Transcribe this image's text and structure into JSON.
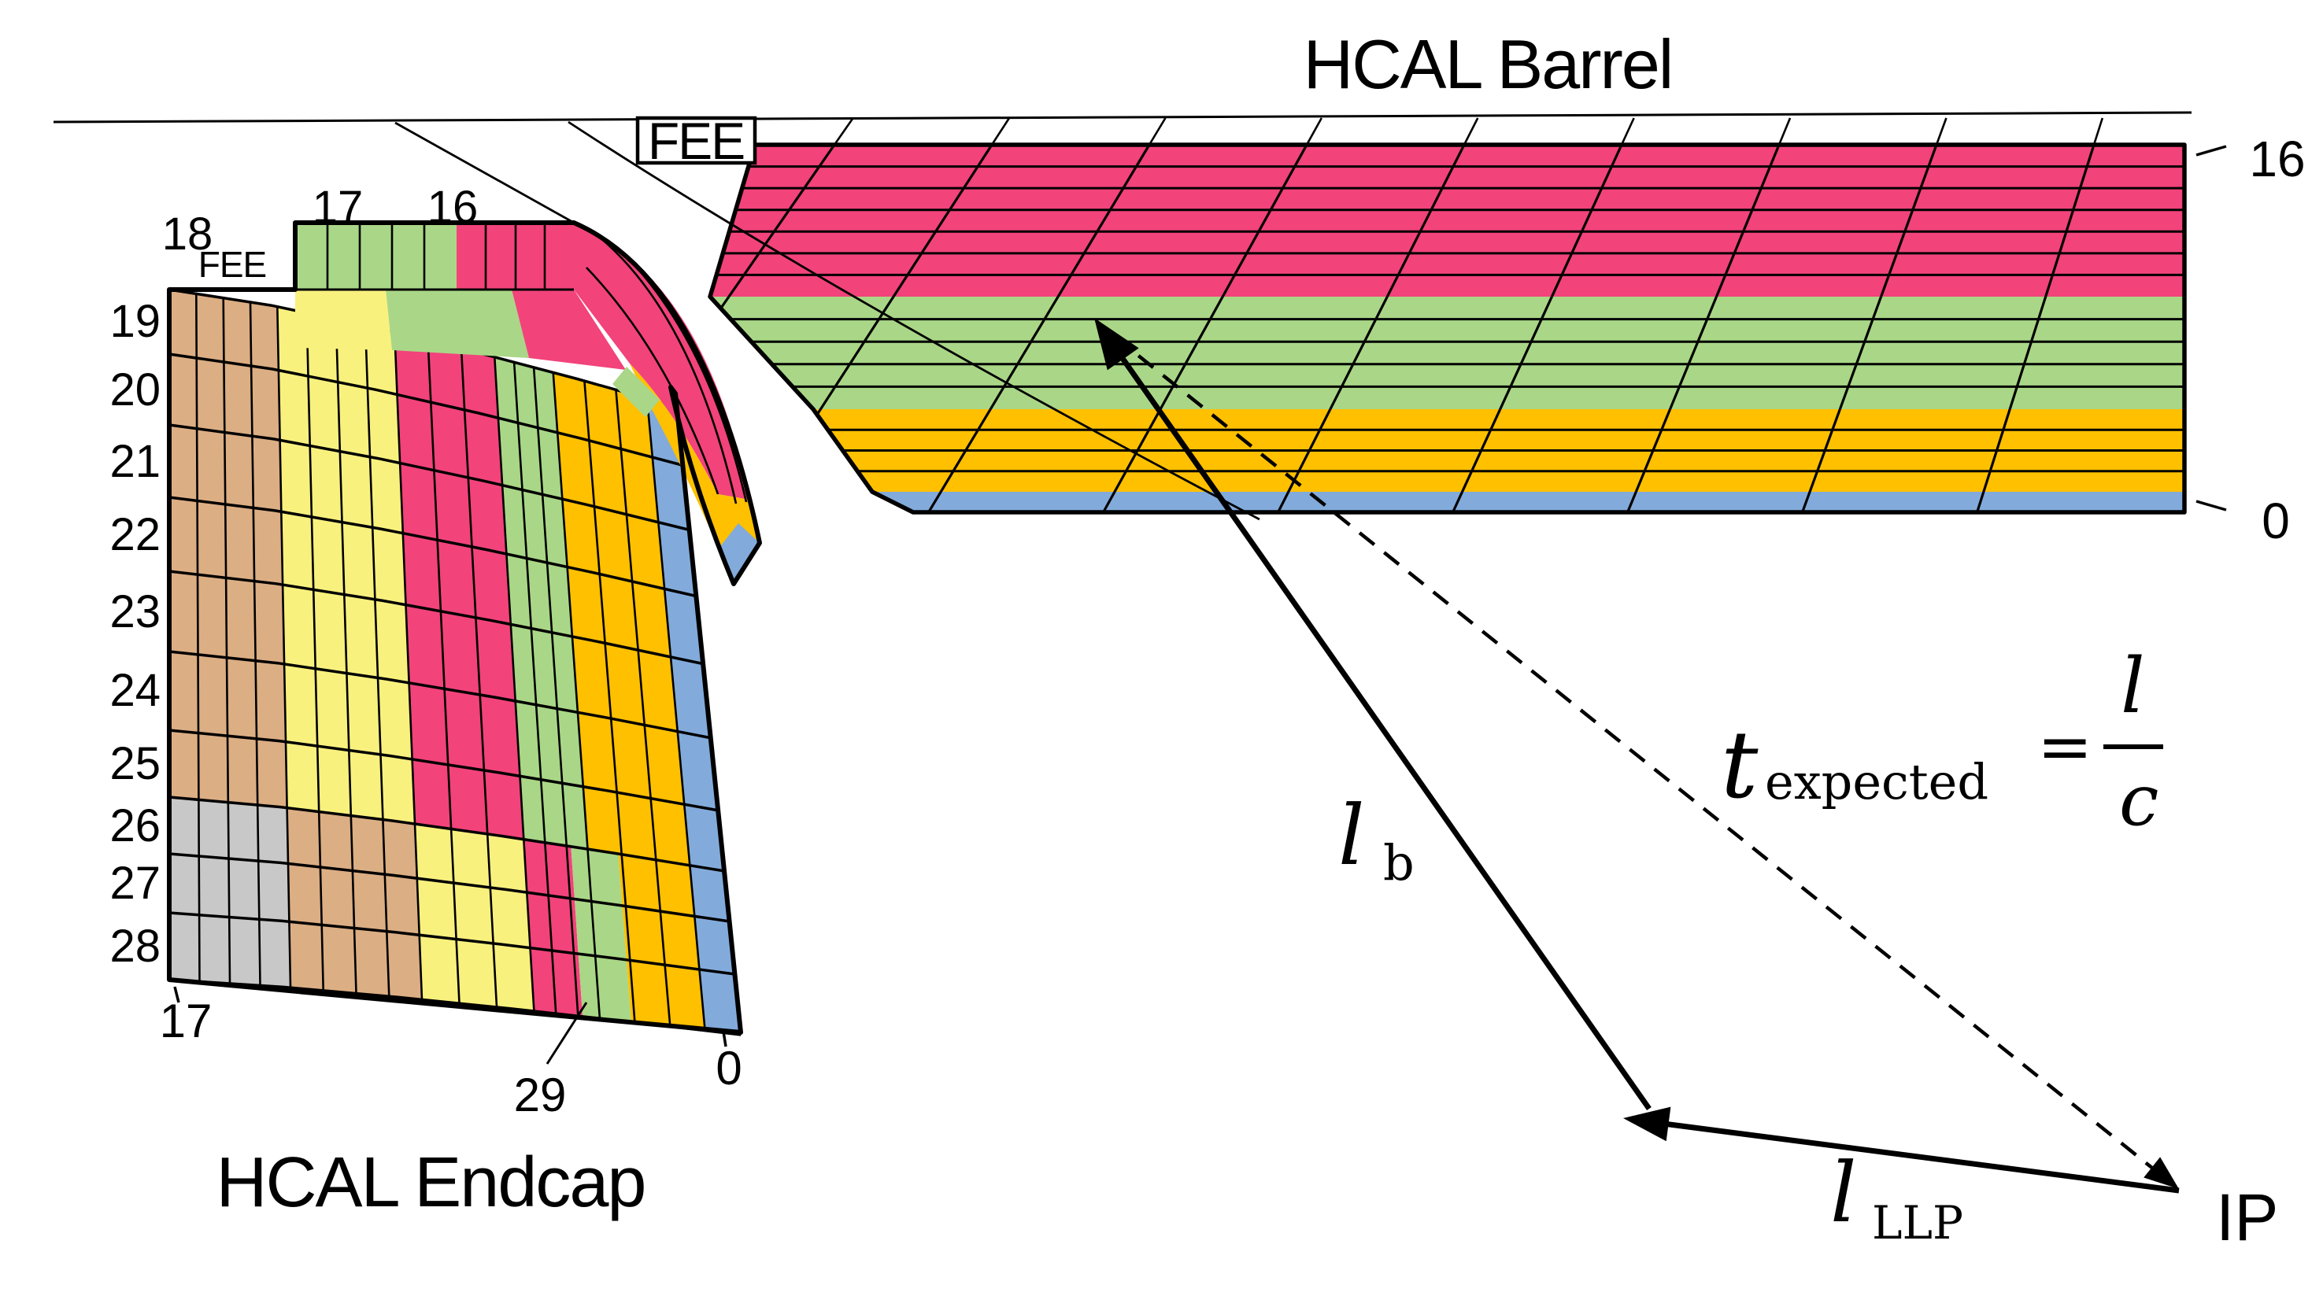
{
  "titles": {
    "barrel": "HCAL Barrel",
    "endcap": "HCAL Endcap"
  },
  "barrel": {
    "fee": "FEE",
    "depth_top": "16",
    "depth_bottom": "0",
    "bands": [
      {
        "color_name": "pink",
        "rows": 7
      },
      {
        "color_name": "green",
        "rows": 5
      },
      {
        "color_name": "orange",
        "rows": 4
      },
      {
        "color_name": "blue",
        "rows": 1
      }
    ]
  },
  "endcap": {
    "fee": "FEE",
    "towers_top": [
      "18",
      "17",
      "16"
    ],
    "towers_left": [
      "19",
      "20",
      "21",
      "22",
      "23",
      "24",
      "25",
      "26",
      "27",
      "28"
    ],
    "tower_bottom": "29",
    "layer_left": "17",
    "layer_right": "0",
    "zones_upper_rows": [
      "tan",
      "yellow",
      "pink",
      "green",
      "orange",
      "blue"
    ],
    "zones_lower_rows": [
      "gray",
      "tan",
      "yellow",
      "pink",
      "green",
      "orange",
      "blue"
    ]
  },
  "vectors": {
    "ip": "IP",
    "lb": {
      "main": "l",
      "sub": "b"
    },
    "lllp": {
      "main": "l",
      "sub": "LLP"
    }
  },
  "formula": {
    "t": "t",
    "sub": "expected",
    "eq": "=",
    "num": "l",
    "den": "c"
  },
  "colors": {
    "pink": "#F2437B",
    "green": "#A9D787",
    "orange": "#FFC000",
    "blue": "#82ABDB",
    "tan": "#DCAE84",
    "yellow": "#F9F17E",
    "gray": "#C8C8C8",
    "line": "#000000",
    "background": "#FFFFFF"
  }
}
